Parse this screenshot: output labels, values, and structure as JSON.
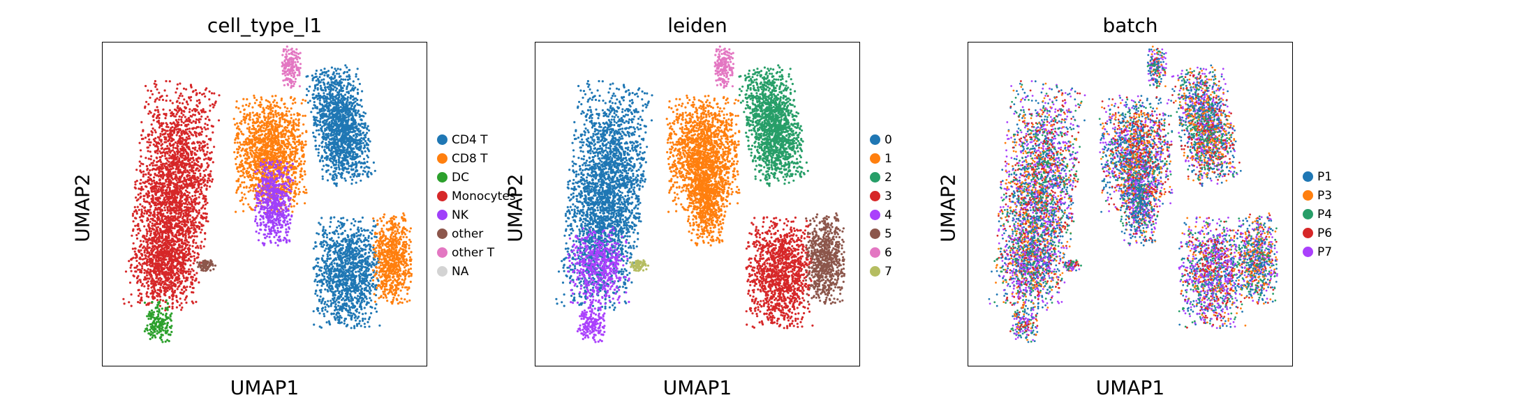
{
  "chart_data": [
    {
      "type": "scatter",
      "title": "cell_type_l1",
      "xlabel": "UMAP1",
      "ylabel": "UMAP2",
      "legend_placement": "right",
      "legend": [
        {
          "label": "CD4 T",
          "color": "#1f77b4"
        },
        {
          "label": "CD8 T",
          "color": "#ff7f0e"
        },
        {
          "label": "DC",
          "color": "#2ca02c"
        },
        {
          "label": "Monocytes",
          "color": "#d62728"
        },
        {
          "label": "NK",
          "color": "#a040fa"
        },
        {
          "label": "other",
          "color": "#8c564b"
        },
        {
          "label": "other T",
          "color": "#e377c2"
        },
        {
          "label": "NA",
          "color": "#d3d3d3"
        }
      ]
    },
    {
      "type": "scatter",
      "title": "leiden",
      "xlabel": "UMAP1",
      "ylabel": "UMAP2",
      "legend_placement": "right",
      "legend": [
        {
          "label": "0",
          "color": "#1f77b4"
        },
        {
          "label": "1",
          "color": "#ff7f0e"
        },
        {
          "label": "2",
          "color": "#279e68"
        },
        {
          "label": "3",
          "color": "#d62728"
        },
        {
          "label": "4",
          "color": "#aa40fc"
        },
        {
          "label": "5",
          "color": "#8c564b"
        },
        {
          "label": "6",
          "color": "#e377c2"
        },
        {
          "label": "7",
          "color": "#b5bd61"
        }
      ]
    },
    {
      "type": "scatter",
      "title": "batch",
      "xlabel": "UMAP1",
      "ylabel": "UMAP2",
      "legend_placement": "right",
      "legend": [
        {
          "label": "P1",
          "color": "#1f77b4"
        },
        {
          "label": "P3",
          "color": "#ff7f0e"
        },
        {
          "label": "P4",
          "color": "#279e68"
        },
        {
          "label": "P6",
          "color": "#d62728"
        },
        {
          "label": "P7",
          "color": "#aa40fc"
        }
      ]
    }
  ]
}
